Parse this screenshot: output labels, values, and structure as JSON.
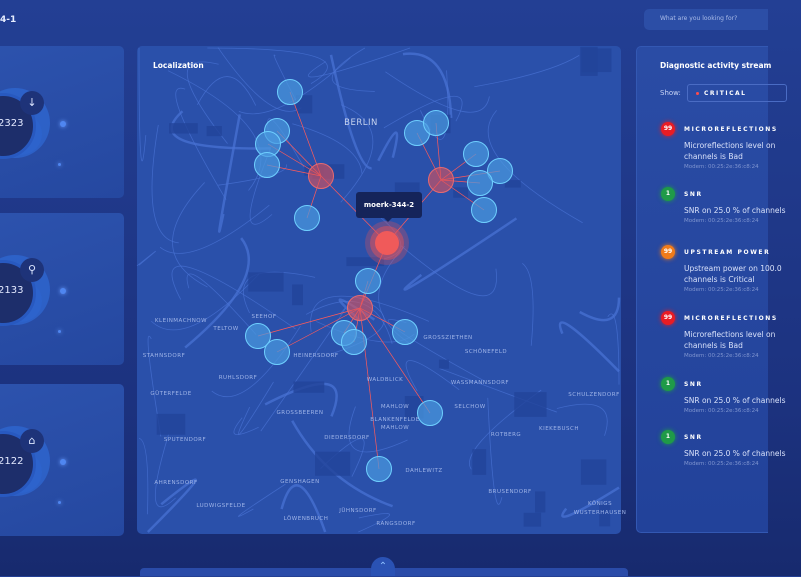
{
  "header": {
    "breadcrumb": "4-1",
    "search_placeholder": "What are you looking for?"
  },
  "cards": [
    {
      "value": "2323",
      "icon": "download-arrow-icon",
      "glyph": "↓"
    },
    {
      "value": "2133",
      "icon": "network-nodes-icon",
      "glyph": "⚲"
    },
    {
      "value": "2122",
      "icon": "modem-signal-icon",
      "glyph": "⌂"
    }
  ],
  "map": {
    "title": "Localization",
    "tooltip": "moerk-344-2",
    "labels": [
      "BERLIN",
      "KLEINMACHNOW",
      "TELTOW",
      "SEEHOF",
      "STAHNSDORF",
      "HEINERSDORF",
      "RUHLSDORF",
      "GÜTERFELDE",
      "GROSSBEEREN",
      "SPUTENDORF",
      "DIEDERSDORF",
      "AHRENSDORF",
      "GENSHAGEN",
      "LUDWIGSFELDE",
      "LÖWENBRUCH",
      "GROSSZIETHEN",
      "SCHÖNEFELD",
      "WASSMANNSDORF",
      "MAHLOW",
      "SELCHOW",
      "BLANKENFELDE",
      "MAHLOW",
      "ROTBERG",
      "KIEKEBUSCH",
      "SCHULZENDORF",
      "DAHLEWITZ",
      "BRUSENDORF",
      "RANGSDORF",
      "KÖNIGS",
      "WUSTERHAUSEN",
      "JÜHNSDORF",
      "WALDBLICK"
    ],
    "colors": {
      "hub": "#e0525a",
      "node": "#4a9ae0",
      "link": "#ff5a5a"
    }
  },
  "stream": {
    "title": "Diagnostic activity stream",
    "show_label": "Show:",
    "filter": "CRITICAL",
    "items": [
      {
        "badge": "99",
        "color": "#e81c24",
        "title": "MICROREFLECTIONS",
        "desc": "Microreflections level on channels is Bad",
        "modem": "Modem: 00:25:2e:36:c8:24"
      },
      {
        "badge": "1",
        "color": "#1f9a48",
        "title": "SNR",
        "desc": "SNR on 25.0 % of channels",
        "modem": "Modem: 00:25:2e:36:c8:24"
      },
      {
        "badge": "99",
        "color": "#f07b1a",
        "title": "UPSTREAM POWER",
        "desc": "Upstream power on 100.0 channels is Critical",
        "modem": "Modem: 00:25:2e:36:c8:24"
      },
      {
        "badge": "99",
        "color": "#e81c24",
        "title": "MICROREFLECTIONS",
        "desc": "Microreflections level on channels is Bad",
        "modem": "Modem: 00:25:2e:36:c8:24"
      },
      {
        "badge": "1",
        "color": "#1f9a48",
        "title": "SNR",
        "desc": "SNR on 25.0 % of channels",
        "modem": "Modem: 00:25:2e:36:c8:24"
      },
      {
        "badge": "1",
        "color": "#1f9a48",
        "title": "SNR",
        "desc": "SNR on 25.0 % of channels",
        "modem": "Modem: 00:25:2e:36:c8:24"
      }
    ]
  }
}
